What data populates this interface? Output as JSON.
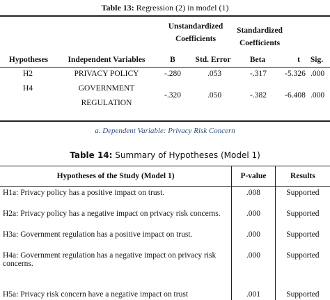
{
  "table13": {
    "caption_label": "Table 13:",
    "caption_text": " Regression (2) in model (1)",
    "group_unstd_line1": "Unstandardized",
    "group_unstd_line2": "Coefficients",
    "group_std_line1": "Standardized",
    "group_std_line2": "Coefficients",
    "columns": [
      "Hypotheses",
      "Independent Variables",
      "B",
      "Std. Error",
      "Beta",
      "t",
      "Sig."
    ],
    "rows": [
      {
        "hyp": "H2",
        "var_line1": "PRIVACY POLICY",
        "var_line2": "",
        "b": "-.280",
        "se": ".053",
        "beta": "-.317",
        "t": "-5.326",
        "sig": ".000"
      },
      {
        "hyp": "H4",
        "var_line1": "GOVERNMENT",
        "var_line2": "REGULATION",
        "b": "-.320",
        "se": ".050",
        "beta": "-.382",
        "t": "-6.408",
        "sig": ".000"
      }
    ],
    "note": "a. Dependent Variable: Privacy Risk Concern"
  },
  "table14": {
    "caption_label": "Table 14:",
    "caption_text": " Summary of Hypotheses (Model 1)",
    "columns": [
      "Hypotheses of the Study (Model 1)",
      "P-value",
      "Results"
    ],
    "rows": [
      {
        "h": "H1a: Privacy policy has a positive impact on trust.",
        "p": ".008",
        "r": "Supported"
      },
      {
        "h": "H2a: Privacy policy has a negative impact on privacy risk concerns.",
        "p": ".000",
        "r": "Supported"
      },
      {
        "h": "H3a: Government regulation has a positive impact on trust.",
        "p": ".000",
        "r": "Supported"
      },
      {
        "h": "H4a: Government regulation has a negative impact on privacy risk concerns.",
        "p": ".000",
        "r": "Supported"
      },
      {
        "h": "H5a: Privacy risk concern have a negative impact on trust",
        "p": ".001",
        "r": "Supported"
      }
    ]
  }
}
